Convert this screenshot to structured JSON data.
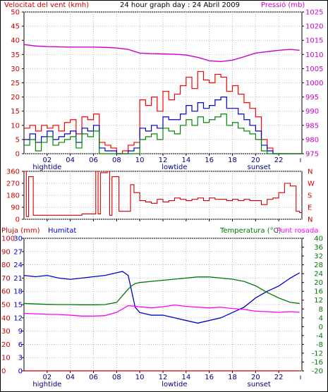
{
  "header": {
    "left": "Velocitat del vent (kmh)",
    "center": "24 hour graph day : 24 Abril 2009",
    "right": "Pressió (mb)"
  },
  "legend3": {
    "rain": "Pluja (mm)",
    "humidity": "Humitat",
    "temp": "Temperatura (°C)",
    "dew": "Punt rosada"
  },
  "colors": {
    "wind_gust": "#ff0000",
    "wind_avg": "#0000cc",
    "wind_min": "#008800",
    "pressure": "#cc00cc",
    "direction": "#cc0000",
    "rain": "#cc0000",
    "humidity": "#0000cc",
    "temperature": "#007700",
    "dewpoint": "#ff00ff",
    "axis_left": "#cc0000",
    "axis_right": "#cc00cc",
    "axis_temp": "#007700"
  },
  "chart_data": [
    {
      "type": "line",
      "title": "24 hour graph day : 24 Abril 2009",
      "xlabel": "",
      "ylabel": "Velocitat del vent (kmh)",
      "y2label": "Pressió (mb)",
      "x_ticks": [
        "02",
        "04",
        "06",
        "08",
        "10",
        "12",
        "14",
        "16",
        "18",
        "20",
        "22"
      ],
      "x_markers": [
        {
          "label": "hightide",
          "hour": 2
        },
        {
          "label": "lowtide",
          "hour": 13
        },
        {
          "label": "sunset",
          "hour": 20.3
        }
      ],
      "ylim": [
        0,
        50
      ],
      "y_ticks": [
        0,
        5,
        10,
        15,
        20,
        25,
        30,
        35,
        40,
        45,
        50
      ],
      "y2lim": [
        975,
        1025
      ],
      "y2_ticks": [
        975,
        980,
        985,
        990,
        995,
        1000,
        1005,
        1010,
        1015,
        1020,
        1025
      ],
      "series": [
        {
          "axis": "y",
          "x": [
            0,
            0.5,
            1,
            1.5,
            2,
            2.5,
            3,
            3.5,
            4,
            4.5,
            5,
            5.5,
            6,
            6.5,
            7,
            7.5,
            8,
            8.5,
            9,
            9.5,
            10,
            10.5,
            11,
            11.5,
            12,
            12.5,
            13,
            13.5,
            14,
            14.5,
            15,
            15.5,
            16,
            16.5,
            17,
            17.5,
            18,
            18.5,
            19,
            19.5,
            20,
            20.5,
            21,
            21.5,
            22,
            22.5,
            23,
            23.5
          ],
          "values": [
            9,
            10,
            8,
            10,
            9,
            10,
            8,
            11,
            12,
            7,
            13,
            12,
            14,
            4,
            3,
            2,
            0,
            1,
            3,
            4,
            19,
            17,
            20,
            15,
            22,
            19,
            21,
            24,
            27,
            23,
            29,
            26,
            25,
            28,
            27,
            22,
            24,
            21,
            18,
            16,
            13,
            5,
            2,
            0,
            0,
            0,
            0,
            0
          ]
        },
        {
          "axis": "y",
          "x": [
            0,
            0.5,
            1,
            1.5,
            2,
            2.5,
            3,
            3.5,
            4,
            4.5,
            5,
            5.5,
            6,
            6.5,
            7,
            7.5,
            8,
            8.5,
            9,
            9.5,
            10,
            10.5,
            11,
            11.5,
            12,
            12.5,
            13,
            13.5,
            14,
            14.5,
            15,
            15.5,
            16,
            16.5,
            17,
            17.5,
            18,
            18.5,
            19,
            19.5,
            20,
            20.5,
            21,
            21.5,
            22,
            22.5,
            23,
            23.5
          ],
          "values": [
            5,
            7,
            4,
            6,
            8,
            5,
            6,
            7,
            8,
            4,
            9,
            8,
            10,
            2,
            1,
            1,
            0,
            0,
            1,
            2,
            9,
            8,
            10,
            9,
            13,
            12,
            12,
            14,
            17,
            15,
            18,
            16,
            17,
            19,
            20,
            16,
            16,
            14,
            12,
            10,
            8,
            3,
            1,
            0,
            0,
            0,
            0,
            0
          ]
        },
        {
          "axis": "y",
          "x": [
            0,
            0.5,
            1,
            1.5,
            2,
            2.5,
            3,
            3.5,
            4,
            4.5,
            5,
            5.5,
            6,
            6.5,
            7,
            7.5,
            8,
            8.5,
            9,
            9.5,
            10,
            10.5,
            11,
            11.5,
            12,
            12.5,
            13,
            13.5,
            14,
            14.5,
            15,
            15.5,
            16,
            16.5,
            17,
            17.5,
            18,
            18.5,
            19,
            19.5,
            20,
            20.5,
            21,
            21.5,
            22,
            22.5,
            23,
            23.5
          ],
          "values": [
            3,
            5,
            1,
            4,
            6,
            3,
            4,
            5,
            6,
            2,
            7,
            6,
            8,
            0,
            0,
            0,
            0,
            0,
            0,
            0,
            5,
            6,
            7,
            5,
            9,
            8,
            7,
            10,
            12,
            10,
            13,
            11,
            12,
            13,
            14,
            10,
            11,
            9,
            8,
            7,
            5,
            1,
            0,
            0,
            0,
            0,
            0,
            0
          ]
        },
        {
          "axis": "y2",
          "x": [
            0,
            1,
            2,
            3,
            4,
            5,
            6,
            7,
            8,
            9,
            10,
            11,
            12,
            13,
            14,
            15,
            16,
            17,
            18,
            19,
            20,
            21,
            22,
            23,
            23.8
          ],
          "values": [
            1013.5,
            1013,
            1012.8,
            1012.7,
            1012.6,
            1012.6,
            1012.6,
            1012.5,
            1012.3,
            1011.8,
            1010.5,
            1010.3,
            1010.2,
            1010.1,
            1009.8,
            1009.0,
            1007.8,
            1007.5,
            1008.0,
            1009.2,
            1010.5,
            1011.0,
            1011.5,
            1011.8,
            1011.5
          ]
        }
      ]
    },
    {
      "type": "line",
      "title": "",
      "ylabel": "",
      "y_ticks": [
        0,
        90,
        180,
        270,
        360
      ],
      "ylim": [
        0,
        360
      ],
      "y2_labels": [
        "N",
        "W",
        "S",
        "E",
        "N"
      ],
      "series": [
        {
          "x": [
            0,
            0.2,
            0.4,
            0.8,
            1,
            2,
            3,
            4,
            5,
            6,
            6.2,
            6.4,
            6.6,
            7.2,
            7.4,
            7.6,
            8,
            8.2,
            8.4,
            9,
            9.2,
            9.5,
            10,
            10.5,
            11,
            11.5,
            12,
            12.5,
            13,
            13.5,
            14,
            14.5,
            15,
            15.5,
            16,
            16.5,
            17,
            17.5,
            18,
            18.5,
            19,
            19.5,
            20,
            20.5,
            21,
            21.5,
            22,
            22.5,
            23,
            23.5,
            23.8
          ],
          "values": [
            360,
            20,
            320,
            30,
            30,
            30,
            30,
            30,
            40,
            40,
            360,
            40,
            350,
            360,
            30,
            320,
            320,
            60,
            60,
            60,
            260,
            200,
            140,
            130,
            120,
            150,
            130,
            140,
            160,
            150,
            140,
            150,
            160,
            140,
            160,
            150,
            150,
            140,
            150,
            140,
            150,
            140,
            140,
            110,
            150,
            160,
            200,
            270,
            250,
            60,
            50
          ]
        }
      ]
    },
    {
      "type": "line",
      "title": "",
      "xlabel": "",
      "ylabel": "Pluja (mm)",
      "y2label": "Temperatura (°C)",
      "x_ticks": [
        "02",
        "04",
        "06",
        "08",
        "10",
        "12",
        "14",
        "16",
        "18",
        "20",
        "22"
      ],
      "x_markers": [
        {
          "label": "hightide",
          "hour": 2
        },
        {
          "label": "lowtide",
          "hour": 13
        },
        {
          "label": "sunset",
          "hour": 20.3
        }
      ],
      "y_ticks_rain": [
        0,
        10,
        20,
        30,
        40,
        50,
        60,
        70,
        80,
        90,
        100
      ],
      "ylim_rain": [
        0,
        100
      ],
      "y_ticks_hum": [
        0,
        3,
        6,
        9,
        12,
        15,
        18,
        21,
        24,
        27,
        30
      ],
      "ylim_hum": [
        0,
        30
      ],
      "y2_ticks": [
        -20,
        -16,
        -12,
        -8,
        -4,
        0,
        4,
        8,
        12,
        16,
        20,
        24,
        28,
        32,
        36,
        40
      ],
      "y2lim": [
        -20,
        40
      ],
      "series": [
        {
          "name": "Pluja (mm)",
          "axis": "rain",
          "x": [
            0,
            23.8
          ],
          "values": [
            0,
            0
          ]
        },
        {
          "name": "Humitat",
          "axis": "rain",
          "x": [
            0,
            1,
            2,
            3,
            4,
            5,
            6,
            7,
            8,
            8.5,
            9,
            9.3,
            9.6,
            10,
            10.5,
            11,
            12,
            13,
            14,
            15,
            16,
            17,
            18,
            19,
            20,
            21,
            22,
            23,
            23.8
          ],
          "values": [
            72,
            71,
            72,
            70,
            69,
            70,
            71,
            72,
            74,
            75,
            72,
            60,
            48,
            44,
            43,
            42,
            42,
            40,
            38,
            36,
            38,
            40,
            44,
            48,
            55,
            60,
            64,
            70,
            74
          ]
        },
        {
          "name": "Temperatura (°C)",
          "axis": "temp",
          "x": [
            0,
            1,
            2,
            3,
            4,
            5,
            6,
            7,
            8,
            8.5,
            9,
            9.3,
            9.6,
            10,
            11,
            12,
            13,
            14,
            15,
            16,
            17,
            18,
            19,
            20,
            21,
            22,
            23,
            23.8
          ],
          "values": [
            10.5,
            10.3,
            10.1,
            10,
            10,
            9.9,
            9.9,
            10,
            11,
            14,
            17,
            18.5,
            19.5,
            20,
            20.5,
            21,
            21.5,
            22,
            22.5,
            22.5,
            22,
            21.5,
            20.5,
            18.5,
            15.5,
            13,
            11,
            10.5
          ]
        },
        {
          "name": "Punt rosada",
          "axis": "temp",
          "x": [
            0,
            1,
            2,
            3,
            4,
            5,
            6,
            7,
            8,
            8.5,
            9,
            9.5,
            10,
            11,
            12,
            13,
            14,
            15,
            16,
            17,
            18,
            19,
            20,
            21,
            22,
            23,
            23.8
          ],
          "values": [
            6,
            5.8,
            5.6,
            5.5,
            5.2,
            4.8,
            4.8,
            5.0,
            6.5,
            8,
            9.5,
            9.3,
            9.0,
            8.5,
            9.0,
            9.8,
            9.2,
            8.8,
            8.5,
            8.8,
            8.2,
            7.8,
            7.0,
            6.8,
            6.5,
            6.8,
            6.5
          ]
        }
      ]
    }
  ]
}
